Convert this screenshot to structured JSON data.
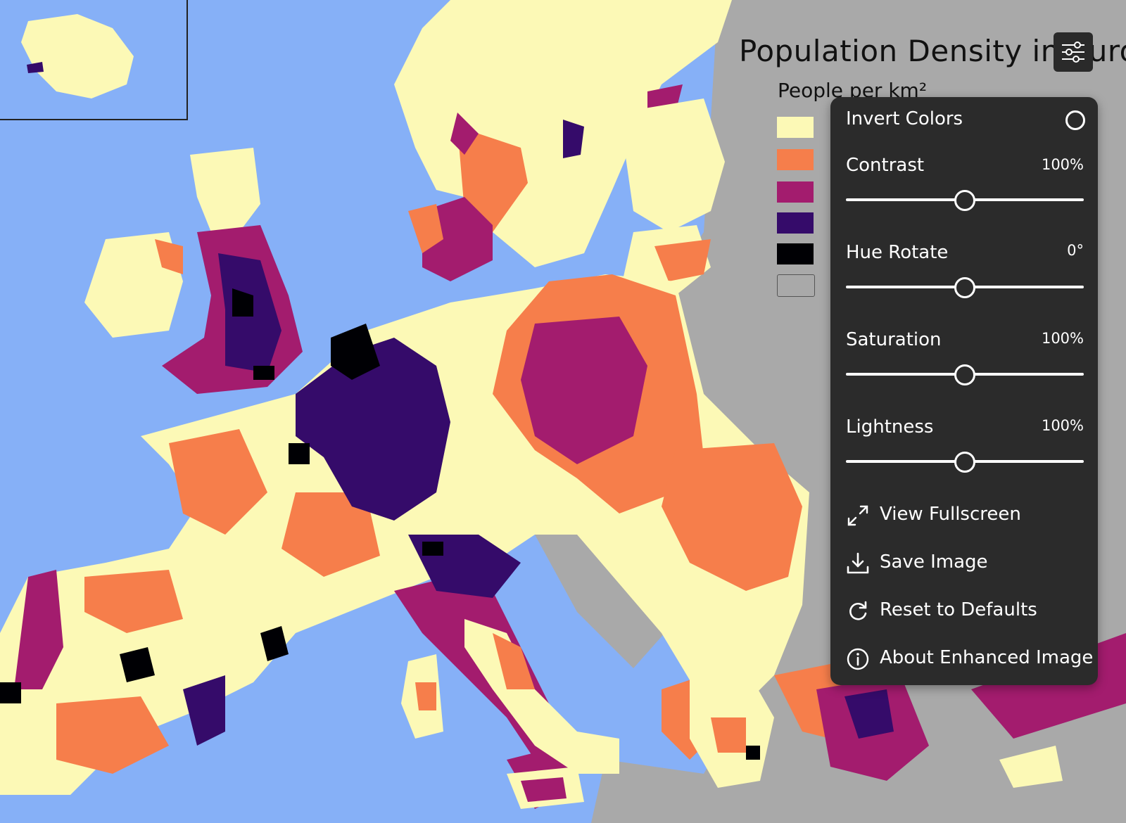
{
  "map": {
    "title": "Population Density in Europe",
    "subtitle": "People per km²",
    "colors": {
      "ocean": "#86b0f7",
      "lowest": "#fcf9b6",
      "low": "#f67e4b",
      "mid": "#a31c6e",
      "high": "#350b6a",
      "highest": "#000004",
      "no_data": "#a9a9a9"
    },
    "legend": [
      "#fcf9b6",
      "#f67e4b",
      "#a31c6e",
      "#350b6a",
      "#000004",
      "#a9a9a9"
    ]
  },
  "toolbar": {
    "settings_icon": "sliders-icon"
  },
  "panel": {
    "invert": {
      "label": "Invert Colors",
      "checked": false
    },
    "contrast": {
      "label": "Contrast",
      "value": "100%",
      "level": 0.5
    },
    "hue": {
      "label": "Hue Rotate",
      "value": "0°",
      "level": 0.5
    },
    "saturation": {
      "label": "Saturation",
      "value": "100%",
      "level": 0.5
    },
    "lightness": {
      "label": "Lightness",
      "value": "100%",
      "level": 0.5
    },
    "actions": [
      {
        "label": "View Fullscreen",
        "icon": "expand-icon"
      },
      {
        "label": "Save Image",
        "icon": "download-icon"
      },
      {
        "label": "Reset to Defaults",
        "icon": "reset-icon"
      },
      {
        "label": "About Enhanced Image",
        "icon": "info-icon"
      }
    ]
  }
}
